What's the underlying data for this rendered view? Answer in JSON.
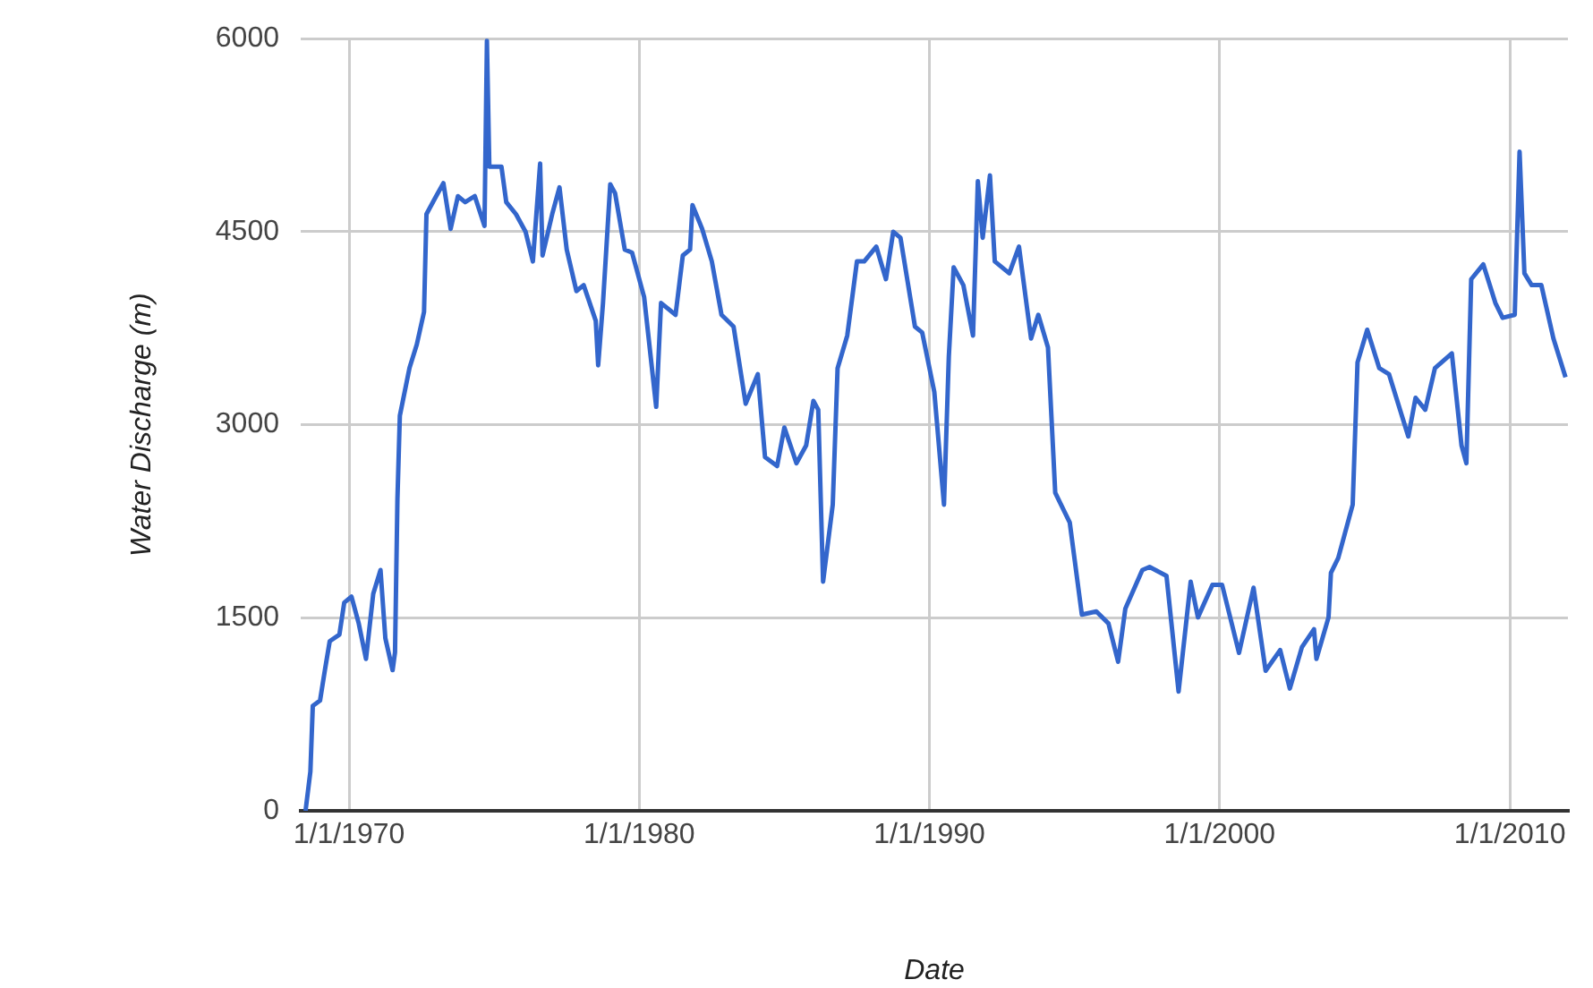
{
  "chart_data": {
    "type": "line",
    "xlabel": "Date",
    "ylabel": "Water Discharge (m)",
    "xlim": [
      "1968-05",
      "2012-01"
    ],
    "xticks": [
      {
        "value": "1970-01-01",
        "label": "1/1/1970"
      },
      {
        "value": "1980-01-01",
        "label": "1/1/1980"
      },
      {
        "value": "1990-01-01",
        "label": "1/1/1990"
      },
      {
        "value": "2000-01-01",
        "label": "1/1/2000"
      },
      {
        "value": "2010-01-01",
        "label": "1/1/2010"
      }
    ],
    "ylim": [
      0,
      6000
    ],
    "yticks": [
      0,
      1500,
      3000,
      4500,
      6000
    ],
    "grid": true,
    "marker": "none",
    "x": [
      "1968-07",
      "1968-09",
      "1968-10",
      "1969-01",
      "1969-03",
      "1969-05",
      "1969-09",
      "1969-11",
      "1970-02",
      "1970-05",
      "1970-08",
      "1970-11",
      "1971-02",
      "1971-04",
      "1971-07",
      "1971-08",
      "1971-09",
      "1971-10",
      "1972-02",
      "1972-05",
      "1972-08",
      "1972-09",
      "1973-01",
      "1973-04",
      "1973-07",
      "1973-10",
      "1974-01",
      "1974-05",
      "1974-09",
      "1974-10",
      "1974-11",
      "1975-04",
      "1975-06",
      "1975-10",
      "1976-02",
      "1976-05",
      "1976-08",
      "1976-09",
      "1977-01",
      "1977-04",
      "1977-07",
      "1977-11",
      "1978-02",
      "1978-07",
      "1978-08",
      "1978-10",
      "1979-01",
      "1979-03",
      "1979-07",
      "1979-10",
      "1980-03",
      "1980-08",
      "1980-10",
      "1981-04",
      "1981-07",
      "1981-10",
      "1981-11",
      "1982-03",
      "1982-07",
      "1982-11",
      "1983-04",
      "1983-09",
      "1984-02",
      "1984-05",
      "1984-10",
      "1985-01",
      "1985-06",
      "1985-10",
      "1986-01",
      "1986-03",
      "1986-05",
      "1986-09",
      "1986-11",
      "1987-03",
      "1987-07",
      "1987-10",
      "1988-03",
      "1988-07",
      "1988-10",
      "1989-01",
      "1989-07",
      "1989-10",
      "1990-03",
      "1990-07",
      "1990-09",
      "1990-11",
      "1991-03",
      "1991-07",
      "1991-09",
      "1991-11",
      "1992-02",
      "1992-04",
      "1992-10",
      "1993-02",
      "1993-07",
      "1993-10",
      "1994-02",
      "1994-05",
      "1994-11",
      "1995-04",
      "1995-10",
      "1996-03",
      "1996-07",
      "1996-10",
      "1997-05",
      "1997-08",
      "1998-03",
      "1998-08",
      "1999-01",
      "1999-04",
      "1999-10",
      "2000-02",
      "2000-09",
      "2001-03",
      "2001-08",
      "2002-02",
      "2002-06",
      "2002-11",
      "2003-04",
      "2003-05",
      "2003-10",
      "2003-11",
      "2004-02",
      "2004-08",
      "2004-10",
      "2005-02",
      "2005-07",
      "2005-11",
      "2006-07",
      "2006-10",
      "2007-02",
      "2007-06",
      "2008-01",
      "2008-05",
      "2008-07",
      "2008-09",
      "2009-02",
      "2009-07",
      "2009-10",
      "2010-03",
      "2010-05",
      "2010-07",
      "2010-10",
      "2011-02",
      "2011-07",
      "2011-12"
    ],
    "series": [
      {
        "color": "#3366cc",
        "values": [
          0,
          304,
          816,
          857,
          1093,
          1318,
          1369,
          1618,
          1664,
          1456,
          1180,
          1687,
          1871,
          1341,
          1093,
          1231,
          2425,
          3070,
          3443,
          3623,
          3877,
          4637,
          4776,
          4877,
          4522,
          4776,
          4730,
          4776,
          4545,
          5984,
          5006,
          5006,
          4730,
          4637,
          4499,
          4269,
          5029,
          4315,
          4637,
          4845,
          4361,
          4039,
          4085,
          3808,
          3462,
          3946,
          4868,
          4799,
          4361,
          4338,
          3993,
          3139,
          3946,
          3854,
          4315,
          4361,
          4706,
          4522,
          4269,
          3854,
          3762,
          3163,
          3393,
          2748,
          2679,
          2978,
          2701,
          2839,
          3185,
          3116,
          1780,
          2379,
          3439,
          3693,
          4269,
          4269,
          4384,
          4131,
          4499,
          4453,
          3762,
          3716,
          3254,
          2379,
          3531,
          4223,
          4085,
          3693,
          4892,
          4453,
          4937,
          4269,
          4177,
          4384,
          3670,
          3854,
          3600,
          2471,
          2240,
          1525,
          1549,
          1456,
          1158,
          1572,
          1871,
          1895,
          1826,
          927,
          1780,
          1503,
          1756,
          1756,
          1227,
          1733,
          1088,
          1249,
          950,
          1272,
          1411,
          1180,
          1503,
          1849,
          1964,
          2379,
          3485,
          3738,
          3439,
          3393,
          2909,
          3209,
          3116,
          3439,
          3554,
          2839,
          2701,
          4131,
          4246,
          3946,
          3831,
          3854,
          5121,
          4177,
          4085,
          4085,
          3670,
          3370
        ]
      }
    ]
  }
}
